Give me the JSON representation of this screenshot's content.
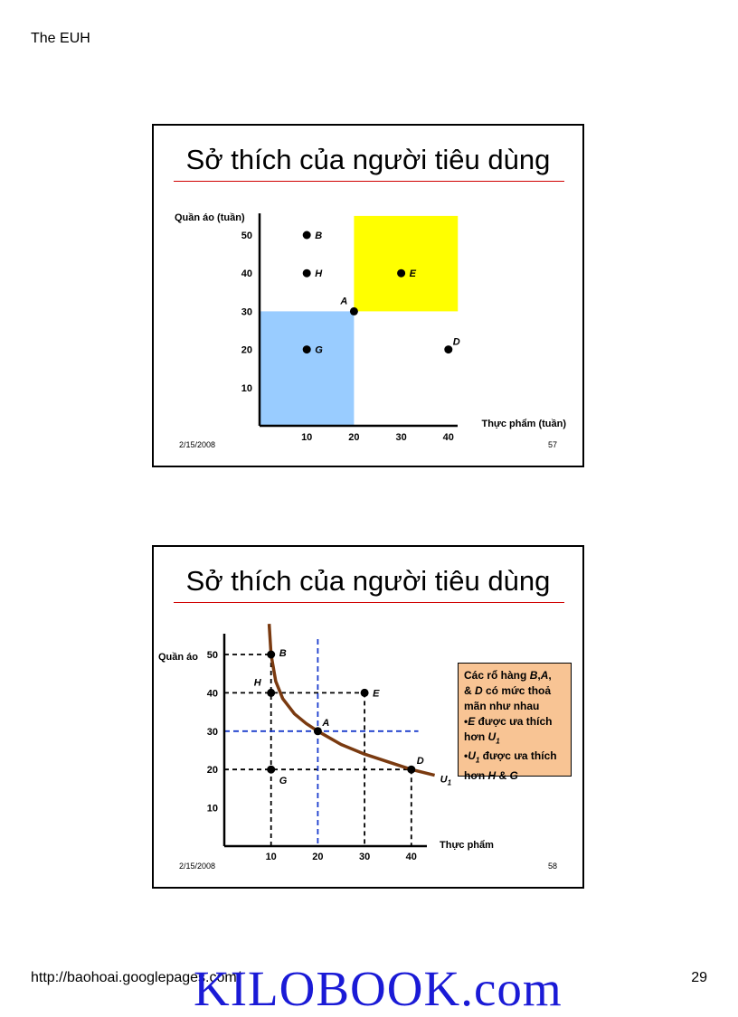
{
  "page": {
    "header": "The EUH",
    "footer_url": "http://baohoai.googlepages.com/",
    "page_number": "29",
    "watermark": "KILOBOOK.com"
  },
  "slides": [
    {
      "title": "Sở thích của người tiêu dùng",
      "date": "2/15/2008",
      "number": "57",
      "chart_data": {
        "type": "scatter",
        "xlabel": "Thực phẩm (tuần)",
        "ylabel": "Quần áo (tuần)",
        "x_ticks": [
          "10",
          "20",
          "30",
          "40"
        ],
        "y_ticks": [
          "10",
          "20",
          "30",
          "40",
          "50"
        ],
        "xlim": [
          0,
          45
        ],
        "ylim": [
          0,
          55
        ],
        "points": [
          {
            "label": "B",
            "x": 10,
            "y": 50
          },
          {
            "label": "H",
            "x": 10,
            "y": 40
          },
          {
            "label": "E",
            "x": 30,
            "y": 40
          },
          {
            "label": "A",
            "x": 20,
            "y": 30
          },
          {
            "label": "G",
            "x": 10,
            "y": 20
          },
          {
            "label": "D",
            "x": 40,
            "y": 20
          }
        ],
        "regions": [
          {
            "name": "preferred",
            "x": [
              20,
              42
            ],
            "y": [
              30,
              55
            ],
            "color": "#ffff00"
          },
          {
            "name": "less-preferred",
            "x": [
              0,
              20
            ],
            "y": [
              0,
              30
            ],
            "color": "#99ccff"
          }
        ]
      }
    },
    {
      "title": "Sở thích của người tiêu dùng",
      "date": "2/15/2008",
      "number": "58",
      "chart_data": {
        "type": "line",
        "xlabel": "Thực phẩm",
        "ylabel": "Quần áo",
        "x_ticks": [
          "10",
          "20",
          "30",
          "40"
        ],
        "y_ticks": [
          "10",
          "20",
          "30",
          "40",
          "50"
        ],
        "xlim": [
          0,
          45
        ],
        "ylim": [
          0,
          55
        ],
        "points": [
          {
            "label": "B",
            "x": 10,
            "y": 50
          },
          {
            "label": "H",
            "x": 10,
            "y": 40
          },
          {
            "label": "E",
            "x": 30,
            "y": 40
          },
          {
            "label": "A",
            "x": 20,
            "y": 30
          },
          {
            "label": "G",
            "x": 10,
            "y": 20
          },
          {
            "label": "D",
            "x": 40,
            "y": 20
          }
        ],
        "curve": {
          "name": "U1",
          "color": "#7a3a10",
          "x": [
            9.6,
            10,
            11,
            12.5,
            15,
            17.5,
            20,
            25,
            30,
            35,
            40,
            45
          ],
          "y": [
            58,
            50,
            43,
            38.5,
            34.5,
            32,
            30,
            26.5,
            24,
            22,
            20,
            18.5
          ]
        },
        "note": {
          "lines": [
            "Các rổ hàng B,A,",
            "& D có mức thoả",
            "mãn như nhau",
            "•E được ưa thích",
            "hơn U1",
            "•U1 được ưa thích",
            "hơn H & G"
          ]
        }
      }
    }
  ]
}
